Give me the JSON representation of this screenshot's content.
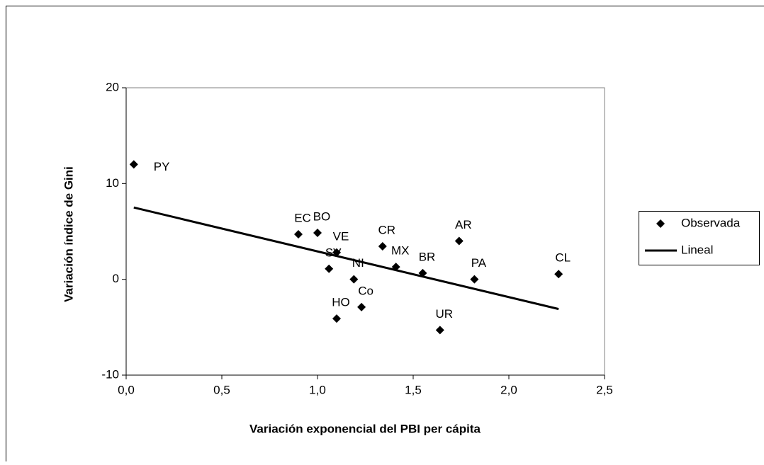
{
  "chart_data": {
    "type": "scatter",
    "x_label": "Variación exponencial del PBI per cápita",
    "y_label": "Variación índice de Gini",
    "xlim": [
      0,
      2.5
    ],
    "xticks": [
      {
        "value": 0,
        "label": "0,0"
      },
      {
        "value": 0.5,
        "label": "0,5"
      },
      {
        "value": 1,
        "label": "1,0"
      },
      {
        "value": 1.5,
        "label": "1,5"
      },
      {
        "value": 2,
        "label": "2,0"
      },
      {
        "value": 2.5,
        "label": "2,5"
      }
    ],
    "ylim": [
      -10,
      20
    ],
    "yticks": [
      -10,
      0,
      10,
      20
    ],
    "series": [
      {
        "name": "Observada",
        "color": "#000000",
        "labels": [
          "PY",
          "EC",
          "BO",
          "VE",
          "SV",
          "NI",
          "HO",
          "Co",
          "CR",
          "MX",
          "BR",
          "UR",
          "AR",
          "PA",
          "CL"
        ],
        "x": [
          0.04,
          0.9,
          1.0,
          1.1,
          1.06,
          1.19,
          1.1,
          1.23,
          1.34,
          1.41,
          1.55,
          1.64,
          1.74,
          1.82,
          2.26
        ],
        "values": [
          12.0,
          4.7,
          4.85,
          2.8,
          1.1,
          0.0,
          -4.1,
          -2.9,
          3.45,
          1.3,
          0.65,
          -5.3,
          4.0,
          0.0,
          0.55
        ]
      },
      {
        "name": "Lineal",
        "color": "#000000",
        "style": "line",
        "x": [
          0.04,
          2.26
        ],
        "values": [
          7.5,
          -3.1
        ]
      }
    ]
  }
}
